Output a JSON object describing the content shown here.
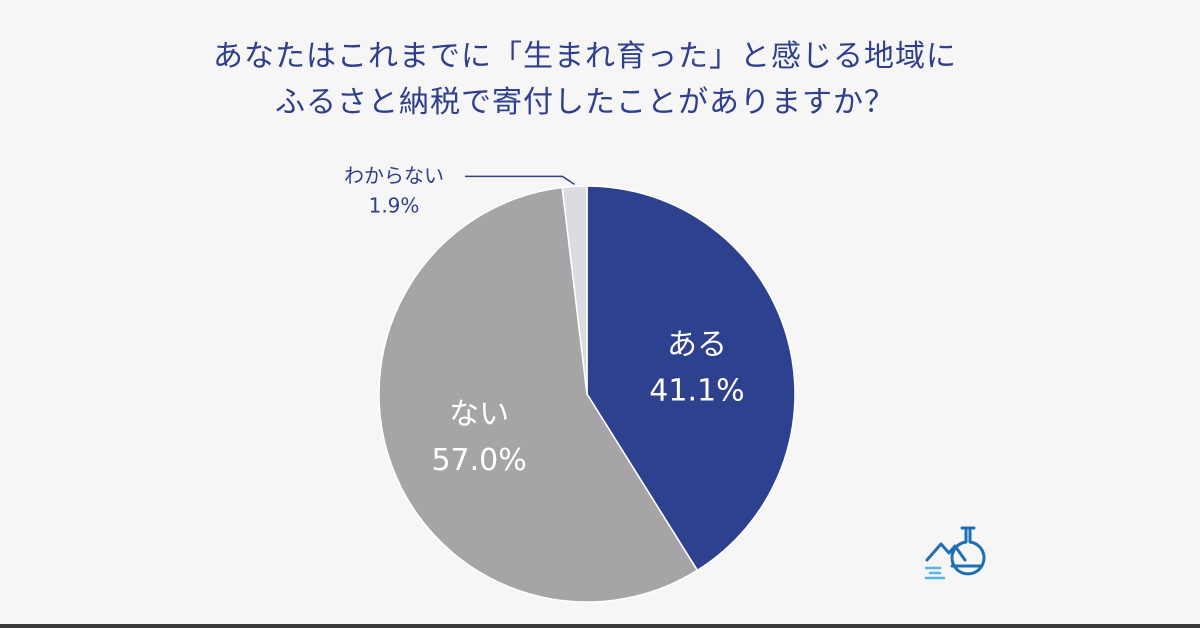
{
  "title": {
    "line1": "あなたはこれまでに「生まれ育った」と感じる地域に",
    "line2": "ふるさと納税で寄付したことがありますか？"
  },
  "chart_data": {
    "type": "pie",
    "title": "あなたはこれまでに「生まれ育った」と感じる地域にふるさと納税で寄付したことがありますか？",
    "slices": [
      {
        "label": "ある",
        "value": 41.1,
        "display": "41.1%",
        "color": "#2e418f"
      },
      {
        "label": "ない",
        "value": 57.0,
        "display": "57.0%",
        "color": "#a7a4a7"
      },
      {
        "label": "わからない",
        "value": 1.9,
        "display": "1.9%",
        "color": "#dcdbe1"
      }
    ],
    "start_angle_deg": 0,
    "direction": "clockwise",
    "legend": "none"
  },
  "colors": {
    "title": "#2e3f8d",
    "background": "#f6f6f6",
    "inside_label": "#ffffff",
    "outside_label": "#2e3f8d",
    "leader_line": "#2e3f8d"
  },
  "logo": {
    "icon": "flask-landscape-icon",
    "color": "#1f6fb2"
  }
}
